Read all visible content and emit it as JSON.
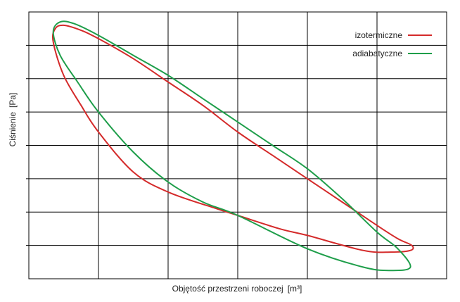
{
  "chart_data": {
    "type": "line",
    "title": "",
    "xlabel": "Objętość przestrzeni roboczej",
    "xlabel_unit": "[m³]",
    "ylabel": "Ciśnienie",
    "ylabel_unit": "[Pa]",
    "xlim": [
      0,
      6
    ],
    "ylim": [
      0,
      8
    ],
    "x_gridlines": 6,
    "y_gridlines": 8,
    "grid": true,
    "tick_labels": false,
    "legend_position": "top-right",
    "series": [
      {
        "name": "izotermiczne",
        "color": "#d42a2a",
        "points": [
          [
            0.38,
            7.5
          ],
          [
            0.5,
            7.6
          ],
          [
            0.75,
            7.45
          ],
          [
            1.0,
            7.2
          ],
          [
            1.5,
            6.6
          ],
          [
            2.0,
            5.9
          ],
          [
            2.5,
            5.2
          ],
          [
            3.0,
            4.4
          ],
          [
            3.5,
            3.7
          ],
          [
            4.0,
            3.0
          ],
          [
            4.5,
            2.3
          ],
          [
            5.0,
            1.6
          ],
          [
            5.3,
            1.2
          ],
          [
            5.5,
            1.0
          ],
          [
            5.48,
            0.85
          ],
          [
            5.2,
            0.8
          ],
          [
            4.8,
            0.85
          ],
          [
            4.0,
            1.3
          ],
          [
            3.6,
            1.5
          ],
          [
            3.0,
            1.9
          ],
          [
            2.7,
            2.1
          ],
          [
            2.0,
            2.6
          ],
          [
            1.5,
            3.2
          ],
          [
            1.0,
            4.4
          ],
          [
            0.75,
            5.2
          ],
          [
            0.5,
            6.1
          ],
          [
            0.35,
            7.1
          ],
          [
            0.38,
            7.5
          ]
        ]
      },
      {
        "name": "adiabatyczne",
        "color": "#1e9e4a",
        "points": [
          [
            0.35,
            7.4
          ],
          [
            0.45,
            7.7
          ],
          [
            0.65,
            7.65
          ],
          [
            1.0,
            7.3
          ],
          [
            1.5,
            6.7
          ],
          [
            2.0,
            6.1
          ],
          [
            2.5,
            5.4
          ],
          [
            3.0,
            4.7
          ],
          [
            3.5,
            4.0
          ],
          [
            4.0,
            3.3
          ],
          [
            4.5,
            2.4
          ],
          [
            5.0,
            1.4
          ],
          [
            5.3,
            0.9
          ],
          [
            5.48,
            0.35
          ],
          [
            5.2,
            0.25
          ],
          [
            4.8,
            0.35
          ],
          [
            4.0,
            0.9
          ],
          [
            3.0,
            1.9
          ],
          [
            2.5,
            2.3
          ],
          [
            2.0,
            2.9
          ],
          [
            1.5,
            3.8
          ],
          [
            1.0,
            5.0
          ],
          [
            0.7,
            5.9
          ],
          [
            0.45,
            6.7
          ],
          [
            0.35,
            7.4
          ]
        ]
      }
    ]
  }
}
